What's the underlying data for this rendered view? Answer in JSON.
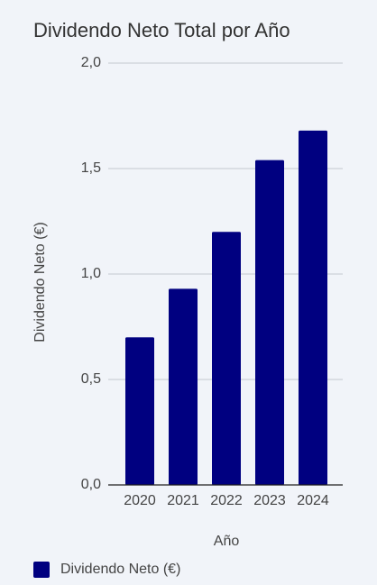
{
  "chart_data": {
    "type": "bar",
    "title": "Dividendo Neto Total por Año",
    "categories": [
      "2020",
      "2021",
      "2022",
      "2023",
      "2024"
    ],
    "series": [
      {
        "name": "Dividendo Neto (€)",
        "color": "#000080",
        "values": [
          0.7,
          0.93,
          1.2,
          1.54,
          1.68
        ]
      }
    ],
    "x_label": "Año",
    "y_label": "Dividendo Neto (€)",
    "ylim": [
      0,
      2
    ],
    "yticks": [
      {
        "value": 0,
        "label": "0,0"
      },
      {
        "value": 0.5,
        "label": "0,5"
      },
      {
        "value": 1,
        "label": "1,0"
      },
      {
        "value": 1.5,
        "label": "1,5"
      },
      {
        "value": 2,
        "label": "2,0"
      }
    ],
    "grid": true,
    "legend": "bottom-left"
  }
}
